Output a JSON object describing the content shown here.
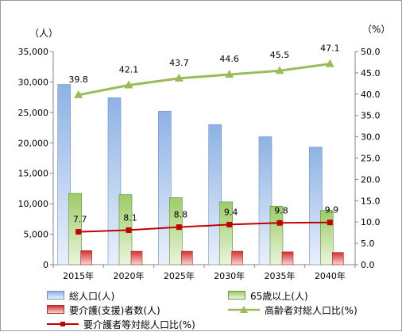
{
  "chart_data": {
    "type": "bar",
    "categories": [
      "2015年",
      "2020年",
      "2025年",
      "2030年",
      "2035年",
      "2040年"
    ],
    "left_unit": "（人）",
    "right_unit": "（%）",
    "left_axis": {
      "min": 0,
      "max": 35000,
      "step": 5000,
      "ticks": [
        "0",
        "5,000",
        "10,000",
        "15,000",
        "20,000",
        "25,000",
        "30,000",
        "35,000"
      ]
    },
    "right_axis": {
      "min": 0,
      "max": 50,
      "step": 5,
      "ticks": [
        "0.0",
        "5.0",
        "10.0",
        "15.0",
        "20.0",
        "25.0",
        "30.0",
        "35.0",
        "40.0",
        "45.0",
        "50.0"
      ]
    },
    "bar_series": [
      {
        "name": "総人口(人)",
        "values": [
          29600,
          27400,
          25200,
          23000,
          21000,
          19300
        ],
        "color": "#9dbbe6"
      },
      {
        "name": "65歳以上(人)",
        "values": [
          11700,
          11500,
          11000,
          10300,
          9600,
          8900
        ],
        "color": "#a9d07f"
      },
      {
        "name": "要介護(支援)者数(人)",
        "values": [
          2300,
          2200,
          2200,
          2200,
          2100,
          2000
        ],
        "color": "#d94b4b"
      }
    ],
    "line_series": [
      {
        "name": "高齢者対総人口比(%)",
        "values": [
          39.8,
          42.1,
          43.7,
          44.6,
          45.5,
          47.1
        ],
        "labels": [
          "39.8",
          "42.1",
          "43.7",
          "44.6",
          "45.5",
          "47.1"
        ],
        "color": "#9bbb59",
        "marker": "triangle"
      },
      {
        "name": "要介護者等対総人口比(%)",
        "values": [
          7.7,
          8.1,
          8.8,
          9.4,
          9.8,
          9.9
        ],
        "labels": [
          "7.7",
          "8.1",
          "8.8",
          "9.4",
          "9.8",
          "9.9"
        ],
        "color": "#c00000",
        "marker": "square"
      }
    ],
    "grid": false,
    "legend_position": "bottom"
  }
}
